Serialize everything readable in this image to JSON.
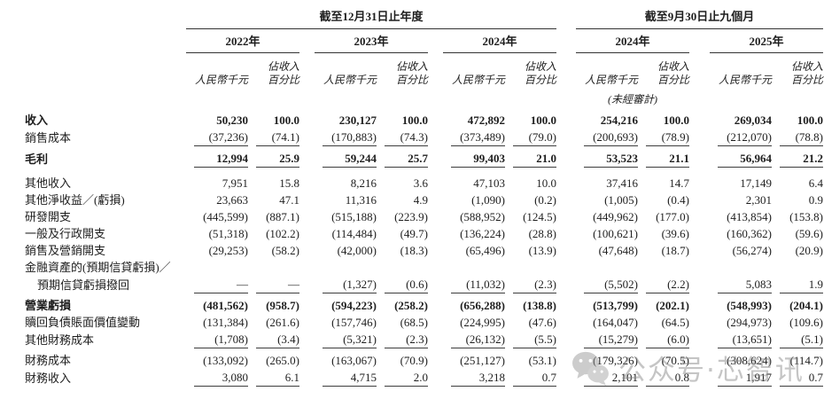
{
  "header": {
    "annual_title": "截至12月31日止年度",
    "interim_title": "截至9月30日止九個月",
    "years": [
      "2022年",
      "2023年",
      "2024年",
      "2024年",
      "2025年"
    ],
    "unit_rmb": "人民幣千元",
    "unit_pct_line1": "佔收入",
    "unit_pct_line2": "百分比",
    "unaudited": "(未經審計)"
  },
  "table": {
    "rows": [
      {
        "label": "收入",
        "bold": true,
        "values": [
          "50,230",
          "100.0",
          "230,127",
          "100.0",
          "472,892",
          "100.0",
          "254,216",
          "100.0",
          "269,034",
          "100.0"
        ]
      },
      {
        "label": "銷售成本",
        "values": [
          "(37,236)",
          "(74.1)",
          "(170,883)",
          "(74.3)",
          "(373,489)",
          "(79.0)",
          "(200,693)",
          "(78.9)",
          "(212,070)",
          "(78.8)"
        ],
        "underline": true
      },
      {
        "label": "毛利",
        "bold": true,
        "gap": "sm",
        "values": [
          "12,994",
          "25.9",
          "59,244",
          "25.7",
          "99,403",
          "21.0",
          "53,523",
          "21.1",
          "56,964",
          "21.2"
        ],
        "underline": true
      },
      {
        "label": "其他收入",
        "gap": "md",
        "values": [
          "7,951",
          "15.8",
          "8,216",
          "3.6",
          "47,103",
          "10.0",
          "37,416",
          "14.7",
          "17,149",
          "6.4"
        ]
      },
      {
        "label": "其他淨收益／(虧損)",
        "values": [
          "23,663",
          "47.1",
          "11,316",
          "4.9",
          "(1,090)",
          "(0.2)",
          "(1,005)",
          "(0.4)",
          "2,301",
          "0.9"
        ]
      },
      {
        "label": "研發開支",
        "values": [
          "(445,599)",
          "(887.1)",
          "(515,188)",
          "(223.9)",
          "(588,952)",
          "(124.5)",
          "(449,962)",
          "(177.0)",
          "(413,854)",
          "(153.8)"
        ]
      },
      {
        "label": "一般及行政開支",
        "values": [
          "(51,318)",
          "(102.2)",
          "(114,484)",
          "(49.7)",
          "(136,224)",
          "(28.8)",
          "(100,621)",
          "(39.6)",
          "(160,362)",
          "(59.6)"
        ]
      },
      {
        "label": "銷售及營銷開支",
        "values": [
          "(29,253)",
          "(58.2)",
          "(42,000)",
          "(18.3)",
          "(65,496)",
          "(13.9)",
          "(47,648)",
          "(18.7)",
          "(56,274)",
          "(20.9)"
        ]
      },
      {
        "label": "金融資產的(預期信貸虧損)／"
      },
      {
        "label": "預期信貸虧損撥回",
        "indent": true,
        "values": [
          "—",
          "—",
          "(1,327)",
          "(0.6)",
          "(11,032)",
          "(2.3)",
          "(5,502)",
          "(2.2)",
          "5,083",
          "1.9"
        ],
        "underline": true
      },
      {
        "label": "營業虧損",
        "bold": true,
        "gap": "sm",
        "values": [
          "(481,562)",
          "(958.7)",
          "(594,223)",
          "(258.2)",
          "(656,288)",
          "(138.8)",
          "(513,799)",
          "(202.1)",
          "(548,993)",
          "(204.1)"
        ]
      },
      {
        "label": "贖回負債賬面價值變動",
        "values": [
          "(131,384)",
          "(261.6)",
          "(157,746)",
          "(68.5)",
          "(224,995)",
          "(47.6)",
          "(164,047)",
          "(64.5)",
          "(294,973)",
          "(109.6)"
        ]
      },
      {
        "label": "其他財務成本",
        "values": [
          "(1,708)",
          "(3.4)",
          "(5,321)",
          "(2.3)",
          "(26,132)",
          "(5.5)",
          "(15,279)",
          "(6.0)",
          "(13,651)",
          "(5.1)"
        ],
        "underline": true
      },
      {
        "label": "財務成本",
        "gap": "sm",
        "values": [
          "(133,092)",
          "(265.0)",
          "(163,067)",
          "(70.9)",
          "(251,127)",
          "(53.1)",
          "(179,326)",
          "(70.5)",
          "(308,624)",
          "(114.7)"
        ]
      },
      {
        "label": "財務收入",
        "values": [
          "3,080",
          "6.1",
          "4,715",
          "2.0",
          "3,218",
          "0.7",
          "2,101",
          "0.8",
          "1,917",
          "0.7"
        ],
        "underline": true
      }
    ]
  },
  "watermark": {
    "icon": "wechat-icon",
    "text": "公众号·芯智讯",
    "color": "#8c8c8c"
  }
}
